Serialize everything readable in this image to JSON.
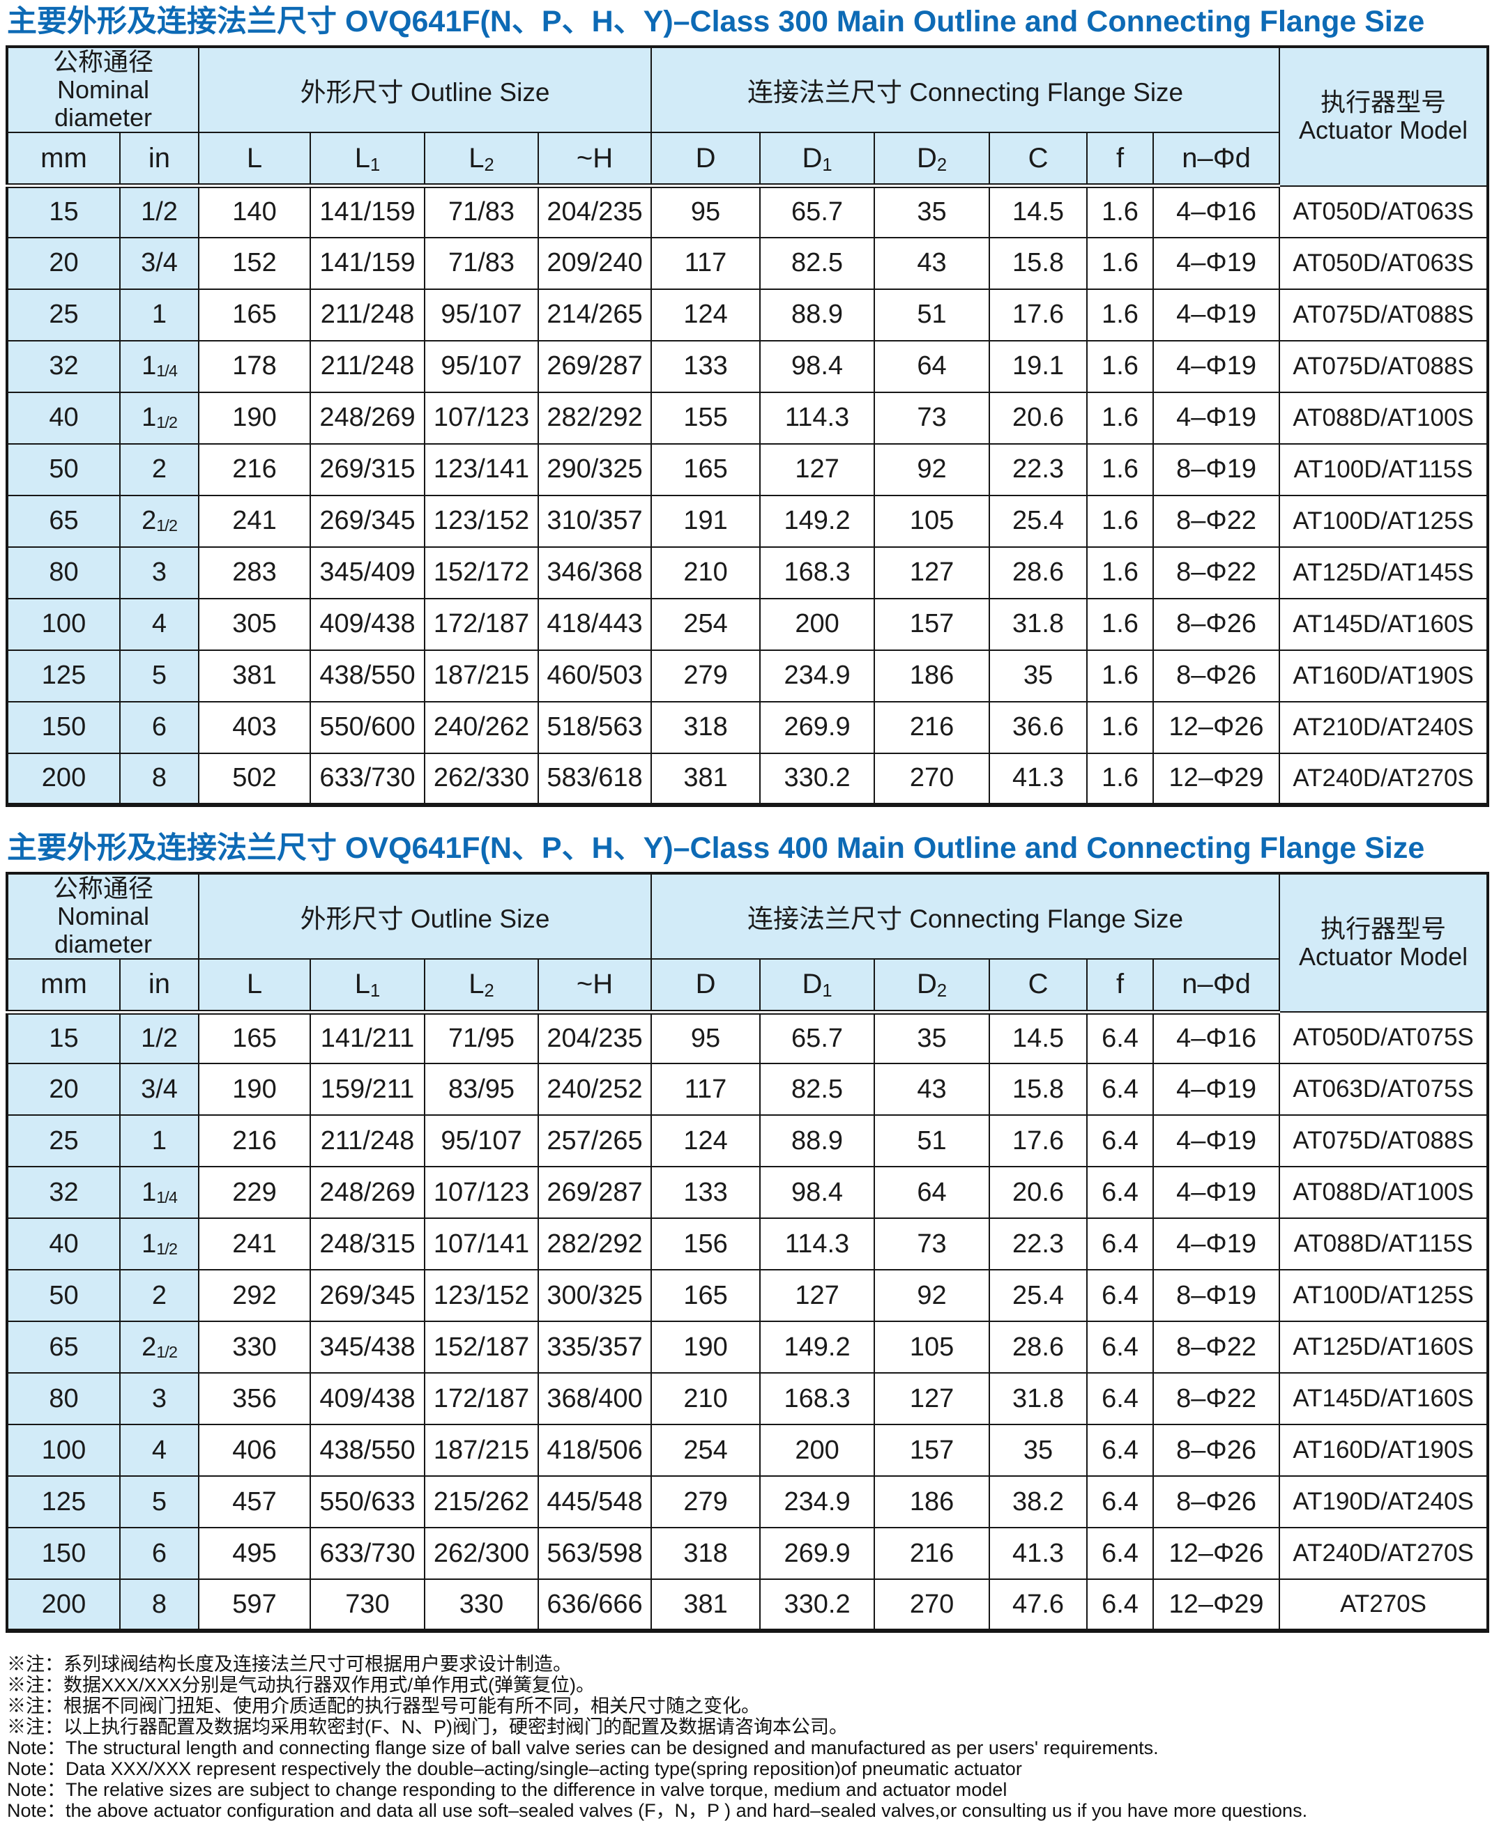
{
  "colors": {
    "title_blue": "#0d6ab5",
    "cell_light_blue": "#d2ebf8",
    "border_black": "#161616"
  },
  "tables": [
    {
      "title": "主要外形及连接法兰尺寸 OVQ641F(N、P、H、Y)–Class 300  Main Outline and Connecting Flange Size",
      "header": {
        "nominal_zh": "公称通径",
        "nominal_en": "Nominal diameter",
        "outline": "外形尺寸 Outline Size",
        "flange": "连接法兰尺寸 Connecting Flange Size",
        "actuator_zh": "执行器型号",
        "actuator_en": "Actuator Model",
        "columns": [
          {
            "main": "mm",
            "sub": ""
          },
          {
            "main": "in",
            "sub": ""
          },
          {
            "main": "L",
            "sub": ""
          },
          {
            "main": "L",
            "sub": "1"
          },
          {
            "main": "L",
            "sub": "2"
          },
          {
            "main": "~H",
            "sub": ""
          },
          {
            "main": "D",
            "sub": ""
          },
          {
            "main": "D",
            "sub": "1"
          },
          {
            "main": "D",
            "sub": "2"
          },
          {
            "main": "C",
            "sub": ""
          },
          {
            "main": "f",
            "sub": ""
          },
          {
            "main": "n–Φd",
            "sub": ""
          }
        ]
      },
      "rows": [
        [
          "15",
          "1/2",
          "140",
          "141/159",
          "71/83",
          "204/235",
          "95",
          "65.7",
          "35",
          "14.5",
          "1.6",
          "4–Φ16",
          "AT050D/AT063S"
        ],
        [
          "20",
          "3/4",
          "152",
          "141/159",
          "71/83",
          "209/240",
          "117",
          "82.5",
          "43",
          "15.8",
          "1.6",
          "4–Φ19",
          "AT050D/AT063S"
        ],
        [
          "25",
          "1",
          "165",
          "211/248",
          "95/107",
          "214/265",
          "124",
          "88.9",
          "51",
          "17.6",
          "1.6",
          "4–Φ19",
          "AT075D/AT088S"
        ],
        [
          "32",
          "1 1/4",
          "178",
          "211/248",
          "95/107",
          "269/287",
          "133",
          "98.4",
          "64",
          "19.1",
          "1.6",
          "4–Φ19",
          "AT075D/AT088S"
        ],
        [
          "40",
          "1 1/2",
          "190",
          "248/269",
          "107/123",
          "282/292",
          "155",
          "114.3",
          "73",
          "20.6",
          "1.6",
          "4–Φ19",
          "AT088D/AT100S"
        ],
        [
          "50",
          "2",
          "216",
          "269/315",
          "123/141",
          "290/325",
          "165",
          "127",
          "92",
          "22.3",
          "1.6",
          "8–Φ19",
          "AT100D/AT115S"
        ],
        [
          "65",
          "2 1/2",
          "241",
          "269/345",
          "123/152",
          "310/357",
          "191",
          "149.2",
          "105",
          "25.4",
          "1.6",
          "8–Φ22",
          "AT100D/AT125S"
        ],
        [
          "80",
          "3",
          "283",
          "345/409",
          "152/172",
          "346/368",
          "210",
          "168.3",
          "127",
          "28.6",
          "1.6",
          "8–Φ22",
          "AT125D/AT145S"
        ],
        [
          "100",
          "4",
          "305",
          "409/438",
          "172/187",
          "418/443",
          "254",
          "200",
          "157",
          "31.8",
          "1.6",
          "8–Φ26",
          "AT145D/AT160S"
        ],
        [
          "125",
          "5",
          "381",
          "438/550",
          "187/215",
          "460/503",
          "279",
          "234.9",
          "186",
          "35",
          "1.6",
          "8–Φ26",
          "AT160D/AT190S"
        ],
        [
          "150",
          "6",
          "403",
          "550/600",
          "240/262",
          "518/563",
          "318",
          "269.9",
          "216",
          "36.6",
          "1.6",
          "12–Φ26",
          "AT210D/AT240S"
        ],
        [
          "200",
          "8",
          "502",
          "633/730",
          "262/330",
          "583/618",
          "381",
          "330.2",
          "270",
          "41.3",
          "1.6",
          "12–Φ29",
          "AT240D/AT270S"
        ]
      ]
    },
    {
      "title": "主要外形及连接法兰尺寸 OVQ641F(N、P、H、Y)–Class 400  Main Outline and Connecting Flange Size",
      "header": {
        "nominal_zh": "公称通径",
        "nominal_en": "Nominal diameter",
        "outline": "外形尺寸 Outline Size",
        "flange": "连接法兰尺寸 Connecting Flange Size",
        "actuator_zh": "执行器型号",
        "actuator_en": "Actuator Model",
        "columns": [
          {
            "main": "mm",
            "sub": ""
          },
          {
            "main": "in",
            "sub": ""
          },
          {
            "main": "L",
            "sub": ""
          },
          {
            "main": "L",
            "sub": "1"
          },
          {
            "main": "L",
            "sub": "2"
          },
          {
            "main": "~H",
            "sub": ""
          },
          {
            "main": "D",
            "sub": ""
          },
          {
            "main": "D",
            "sub": "1"
          },
          {
            "main": "D",
            "sub": "2"
          },
          {
            "main": "C",
            "sub": ""
          },
          {
            "main": "f",
            "sub": ""
          },
          {
            "main": "n–Φd",
            "sub": ""
          }
        ]
      },
      "rows": [
        [
          "15",
          "1/2",
          "165",
          "141/211",
          "71/95",
          "204/235",
          "95",
          "65.7",
          "35",
          "14.5",
          "6.4",
          "4–Φ16",
          "AT050D/AT075S"
        ],
        [
          "20",
          "3/4",
          "190",
          "159/211",
          "83/95",
          "240/252",
          "117",
          "82.5",
          "43",
          "15.8",
          "6.4",
          "4–Φ19",
          "AT063D/AT075S"
        ],
        [
          "25",
          "1",
          "216",
          "211/248",
          "95/107",
          "257/265",
          "124",
          "88.9",
          "51",
          "17.6",
          "6.4",
          "4–Φ19",
          "AT075D/AT088S"
        ],
        [
          "32",
          "1 1/4",
          "229",
          "248/269",
          "107/123",
          "269/287",
          "133",
          "98.4",
          "64",
          "20.6",
          "6.4",
          "4–Φ19",
          "AT088D/AT100S"
        ],
        [
          "40",
          "1 1/2",
          "241",
          "248/315",
          "107/141",
          "282/292",
          "156",
          "114.3",
          "73",
          "22.3",
          "6.4",
          "4–Φ19",
          "AT088D/AT115S"
        ],
        [
          "50",
          "2",
          "292",
          "269/345",
          "123/152",
          "300/325",
          "165",
          "127",
          "92",
          "25.4",
          "6.4",
          "8–Φ19",
          "AT100D/AT125S"
        ],
        [
          "65",
          "2 1/2",
          "330",
          "345/438",
          "152/187",
          "335/357",
          "190",
          "149.2",
          "105",
          "28.6",
          "6.4",
          "8–Φ22",
          "AT125D/AT160S"
        ],
        [
          "80",
          "3",
          "356",
          "409/438",
          "172/187",
          "368/400",
          "210",
          "168.3",
          "127",
          "31.8",
          "6.4",
          "8–Φ22",
          "AT145D/AT160S"
        ],
        [
          "100",
          "4",
          "406",
          "438/550",
          "187/215",
          "418/506",
          "254",
          "200",
          "157",
          "35",
          "6.4",
          "8–Φ26",
          "AT160D/AT190S"
        ],
        [
          "125",
          "5",
          "457",
          "550/633",
          "215/262",
          "445/548",
          "279",
          "234.9",
          "186",
          "38.2",
          "6.4",
          "8–Φ26",
          "AT190D/AT240S"
        ],
        [
          "150",
          "6",
          "495",
          "633/730",
          "262/300",
          "563/598",
          "318",
          "269.9",
          "216",
          "41.3",
          "6.4",
          "12–Φ26",
          "AT240D/AT270S"
        ],
        [
          "200",
          "8",
          "597",
          "730",
          "330",
          "636/666",
          "381",
          "330.2",
          "270",
          "47.6",
          "6.4",
          "12–Φ29",
          "AT270S"
        ]
      ]
    }
  ],
  "notes": [
    "※注：系列球阀结构长度及连接法兰尺寸可根据用户要求设计制造。",
    "※注：数据XXX/XXX分别是气动执行器双作用式/单作用式(弹簧复位)。",
    "※注：根据不同阀门扭矩、使用介质适配的执行器型号可能有所不同，相关尺寸随之变化。",
    "※注：以上执行器配置及数据均采用软密封(F、N、P)阀门，硬密封阀门的配置及数据请咨询本公司。",
    "Note：The structural length and connecting flange size of ball valve series can be designed and manufactured as per users' requirements.",
    "Note：Data XXX/XXX represent respectively the double–acting/single–acting type(spring reposition)of pneumatic actuator",
    "Note：The relative sizes are subject to change responding to the difference in valve torque, medium and actuator model",
    "Note：the above actuator  configuration and data  all use soft–sealed valves (F，N，P ) and  hard–sealed valves,or consulting us if you have more questions."
  ]
}
